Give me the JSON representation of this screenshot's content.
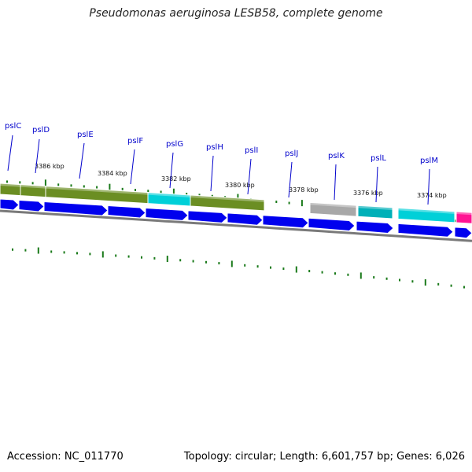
{
  "title": "Pseudomonas aeruginosa LESB58, complete genome",
  "accession": "Accession: NC_011770",
  "topology": "Topology: circular; Length: 6,601,757 bp; Genes: 6,026",
  "colors": {
    "cds": "#0000ee",
    "olive": "#6b8e23",
    "cyan": "#00d0d8",
    "teal": "#00b0b8",
    "gray": "#a8a8a8",
    "magenta": "#ff1493",
    "tick": "#1a7a1a",
    "backbone": "#7a7a7a",
    "label": "#0000cc"
  },
  "genes": [
    {
      "name": "pslC"
    },
    {
      "name": "pslD"
    },
    {
      "name": "pslE"
    },
    {
      "name": "pslF"
    },
    {
      "name": "pslG"
    },
    {
      "name": "pslH"
    },
    {
      "name": "pslI"
    },
    {
      "name": "pslJ"
    },
    {
      "name": "pslK"
    },
    {
      "name": "pslL"
    },
    {
      "name": "pslM"
    }
  ],
  "kbp_ticks": [
    {
      "label": "3386 kbp"
    },
    {
      "label": "3384 kbp"
    },
    {
      "label": "3382 kbp"
    },
    {
      "label": "3380 kbp"
    },
    {
      "label": "3378 kbp"
    },
    {
      "label": "3376 kbp"
    },
    {
      "label": "3374 kbp"
    }
  ]
}
